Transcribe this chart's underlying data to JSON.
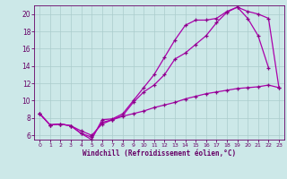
{
  "background_color": "#cce8e8",
  "grid_color": "#aacccc",
  "line_color": "#aa00aa",
  "marker_color": "#880088",
  "xlabel": "Windchill (Refroidissement éolien,°C)",
  "xlabel_color": "#660066",
  "tick_color": "#660066",
  "xlim": [
    -0.5,
    23.5
  ],
  "ylim": [
    5.5,
    21.0
  ],
  "yticks": [
    6,
    8,
    10,
    12,
    14,
    16,
    18,
    20
  ],
  "xticks": [
    0,
    1,
    2,
    3,
    4,
    5,
    6,
    7,
    8,
    9,
    10,
    11,
    12,
    13,
    14,
    15,
    16,
    17,
    18,
    19,
    20,
    21,
    22,
    23
  ],
  "series1_x": [
    0,
    1,
    2,
    3,
    4,
    5,
    6,
    7,
    8,
    9,
    10,
    11,
    12,
    13,
    14,
    15,
    16,
    17,
    18,
    19,
    20,
    21,
    22
  ],
  "series1_y": [
    8.5,
    7.2,
    7.3,
    7.1,
    6.2,
    5.5,
    7.8,
    7.9,
    8.5,
    10.0,
    11.5,
    13.0,
    15.0,
    17.0,
    18.7,
    19.3,
    19.3,
    19.5,
    20.3,
    20.8,
    19.5,
    17.5,
    13.8
  ],
  "series2_x": [
    0,
    1,
    2,
    3,
    4,
    5,
    6,
    7,
    8,
    9,
    10,
    11,
    12,
    13,
    14,
    15,
    16,
    17,
    18,
    19,
    20,
    21,
    22,
    23
  ],
  "series2_y": [
    8.5,
    7.2,
    7.3,
    7.1,
    6.2,
    5.8,
    7.5,
    7.8,
    8.3,
    9.8,
    11.0,
    11.8,
    13.0,
    14.8,
    15.5,
    16.5,
    17.5,
    19.0,
    20.2,
    20.8,
    20.3,
    20.0,
    19.5,
    11.5
  ],
  "series3_x": [
    0,
    1,
    2,
    3,
    4,
    5,
    6,
    7,
    8,
    9,
    10,
    11,
    12,
    13,
    14,
    15,
    16,
    17,
    18,
    19,
    20,
    21,
    22,
    23
  ],
  "series3_y": [
    8.5,
    7.2,
    7.3,
    7.1,
    6.5,
    6.0,
    7.3,
    7.8,
    8.2,
    8.5,
    8.8,
    9.2,
    9.5,
    9.8,
    10.2,
    10.5,
    10.8,
    11.0,
    11.2,
    11.4,
    11.5,
    11.6,
    11.8,
    11.5
  ]
}
